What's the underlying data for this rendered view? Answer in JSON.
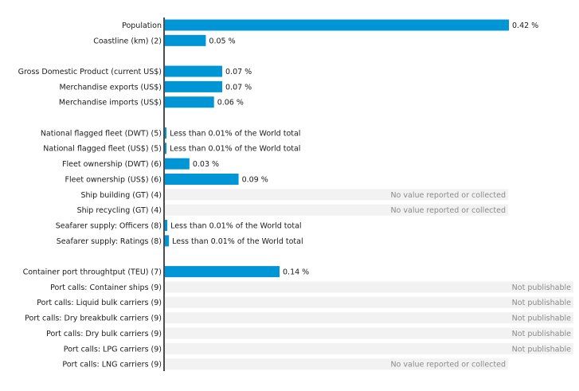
{
  "chart_data": {
    "type": "bar",
    "orientation": "horizontal",
    "unit": "%",
    "colors": {
      "bar": "#0096d6",
      "axis": "#000000",
      "placeholder_row": "#f2f2f2",
      "note_text": "#8a8a8a"
    },
    "rows": [
      {
        "label": "Population",
        "value": 0.42,
        "value_label": "0.42 %"
      },
      {
        "label": "Coastline (km) (2)",
        "value": 0.05,
        "value_label": "0.05 %"
      },
      {
        "gap": true
      },
      {
        "label": "Gross Domestic Product (current US$)",
        "value": 0.07,
        "value_label": "0.07 %"
      },
      {
        "label": "Merchandise exports (US$)",
        "value": 0.07,
        "value_label": "0.07 %"
      },
      {
        "label": "Merchandise imports (US$)",
        "value": 0.06,
        "value_label": "0.06 %"
      },
      {
        "gap": true
      },
      {
        "label": "National flagged fleet (DWT) (5)",
        "value": 0.001,
        "value_label": "Less than 0.01% of the World total"
      },
      {
        "label": "National flagged fleet (US$) (5)",
        "value": 0.001,
        "value_label": "Less than 0.01% of the World total"
      },
      {
        "label": "Fleet ownership (DWT) (6)",
        "value": 0.03,
        "value_label": "0.03 %"
      },
      {
        "label": "Fleet ownership (US$) (6)",
        "value": 0.09,
        "value_label": "0.09 %"
      },
      {
        "label": "Ship building (GT) (4)",
        "value": null,
        "note": "No value reported or collected"
      },
      {
        "label": "Ship recycling (GT) (4)",
        "value": null,
        "note": "No value reported or collected"
      },
      {
        "label": "Seafarer supply: Officers (8)",
        "value": 0.003,
        "value_label": "Less than 0.01% of the World total"
      },
      {
        "label": "Seafarer supply: Ratings (8)",
        "value": 0.005,
        "value_label": "Less than 0.01% of the World total"
      },
      {
        "gap": true
      },
      {
        "label": "Container port throughtput (TEU) (7)",
        "value": 0.14,
        "value_label": "0.14 %"
      },
      {
        "label": "Port calls: Container ships (9)",
        "value": null,
        "note": "Not publishable"
      },
      {
        "label": "Port calls: Liquid bulk carriers (9)",
        "value": null,
        "note": "Not publishable"
      },
      {
        "label": "Port calls: Dry breakbulk carriers (9)",
        "value": null,
        "note": "Not publishable"
      },
      {
        "label": "Port calls: Dry bulk carriers (9)",
        "value": null,
        "note": "Not publishable"
      },
      {
        "label": "Port calls: LPG carriers (9)",
        "value": null,
        "note": "Not publishable"
      },
      {
        "label": "Port calls: LNG carriers (9)",
        "value": null,
        "note": "No value reported or collected"
      }
    ]
  }
}
